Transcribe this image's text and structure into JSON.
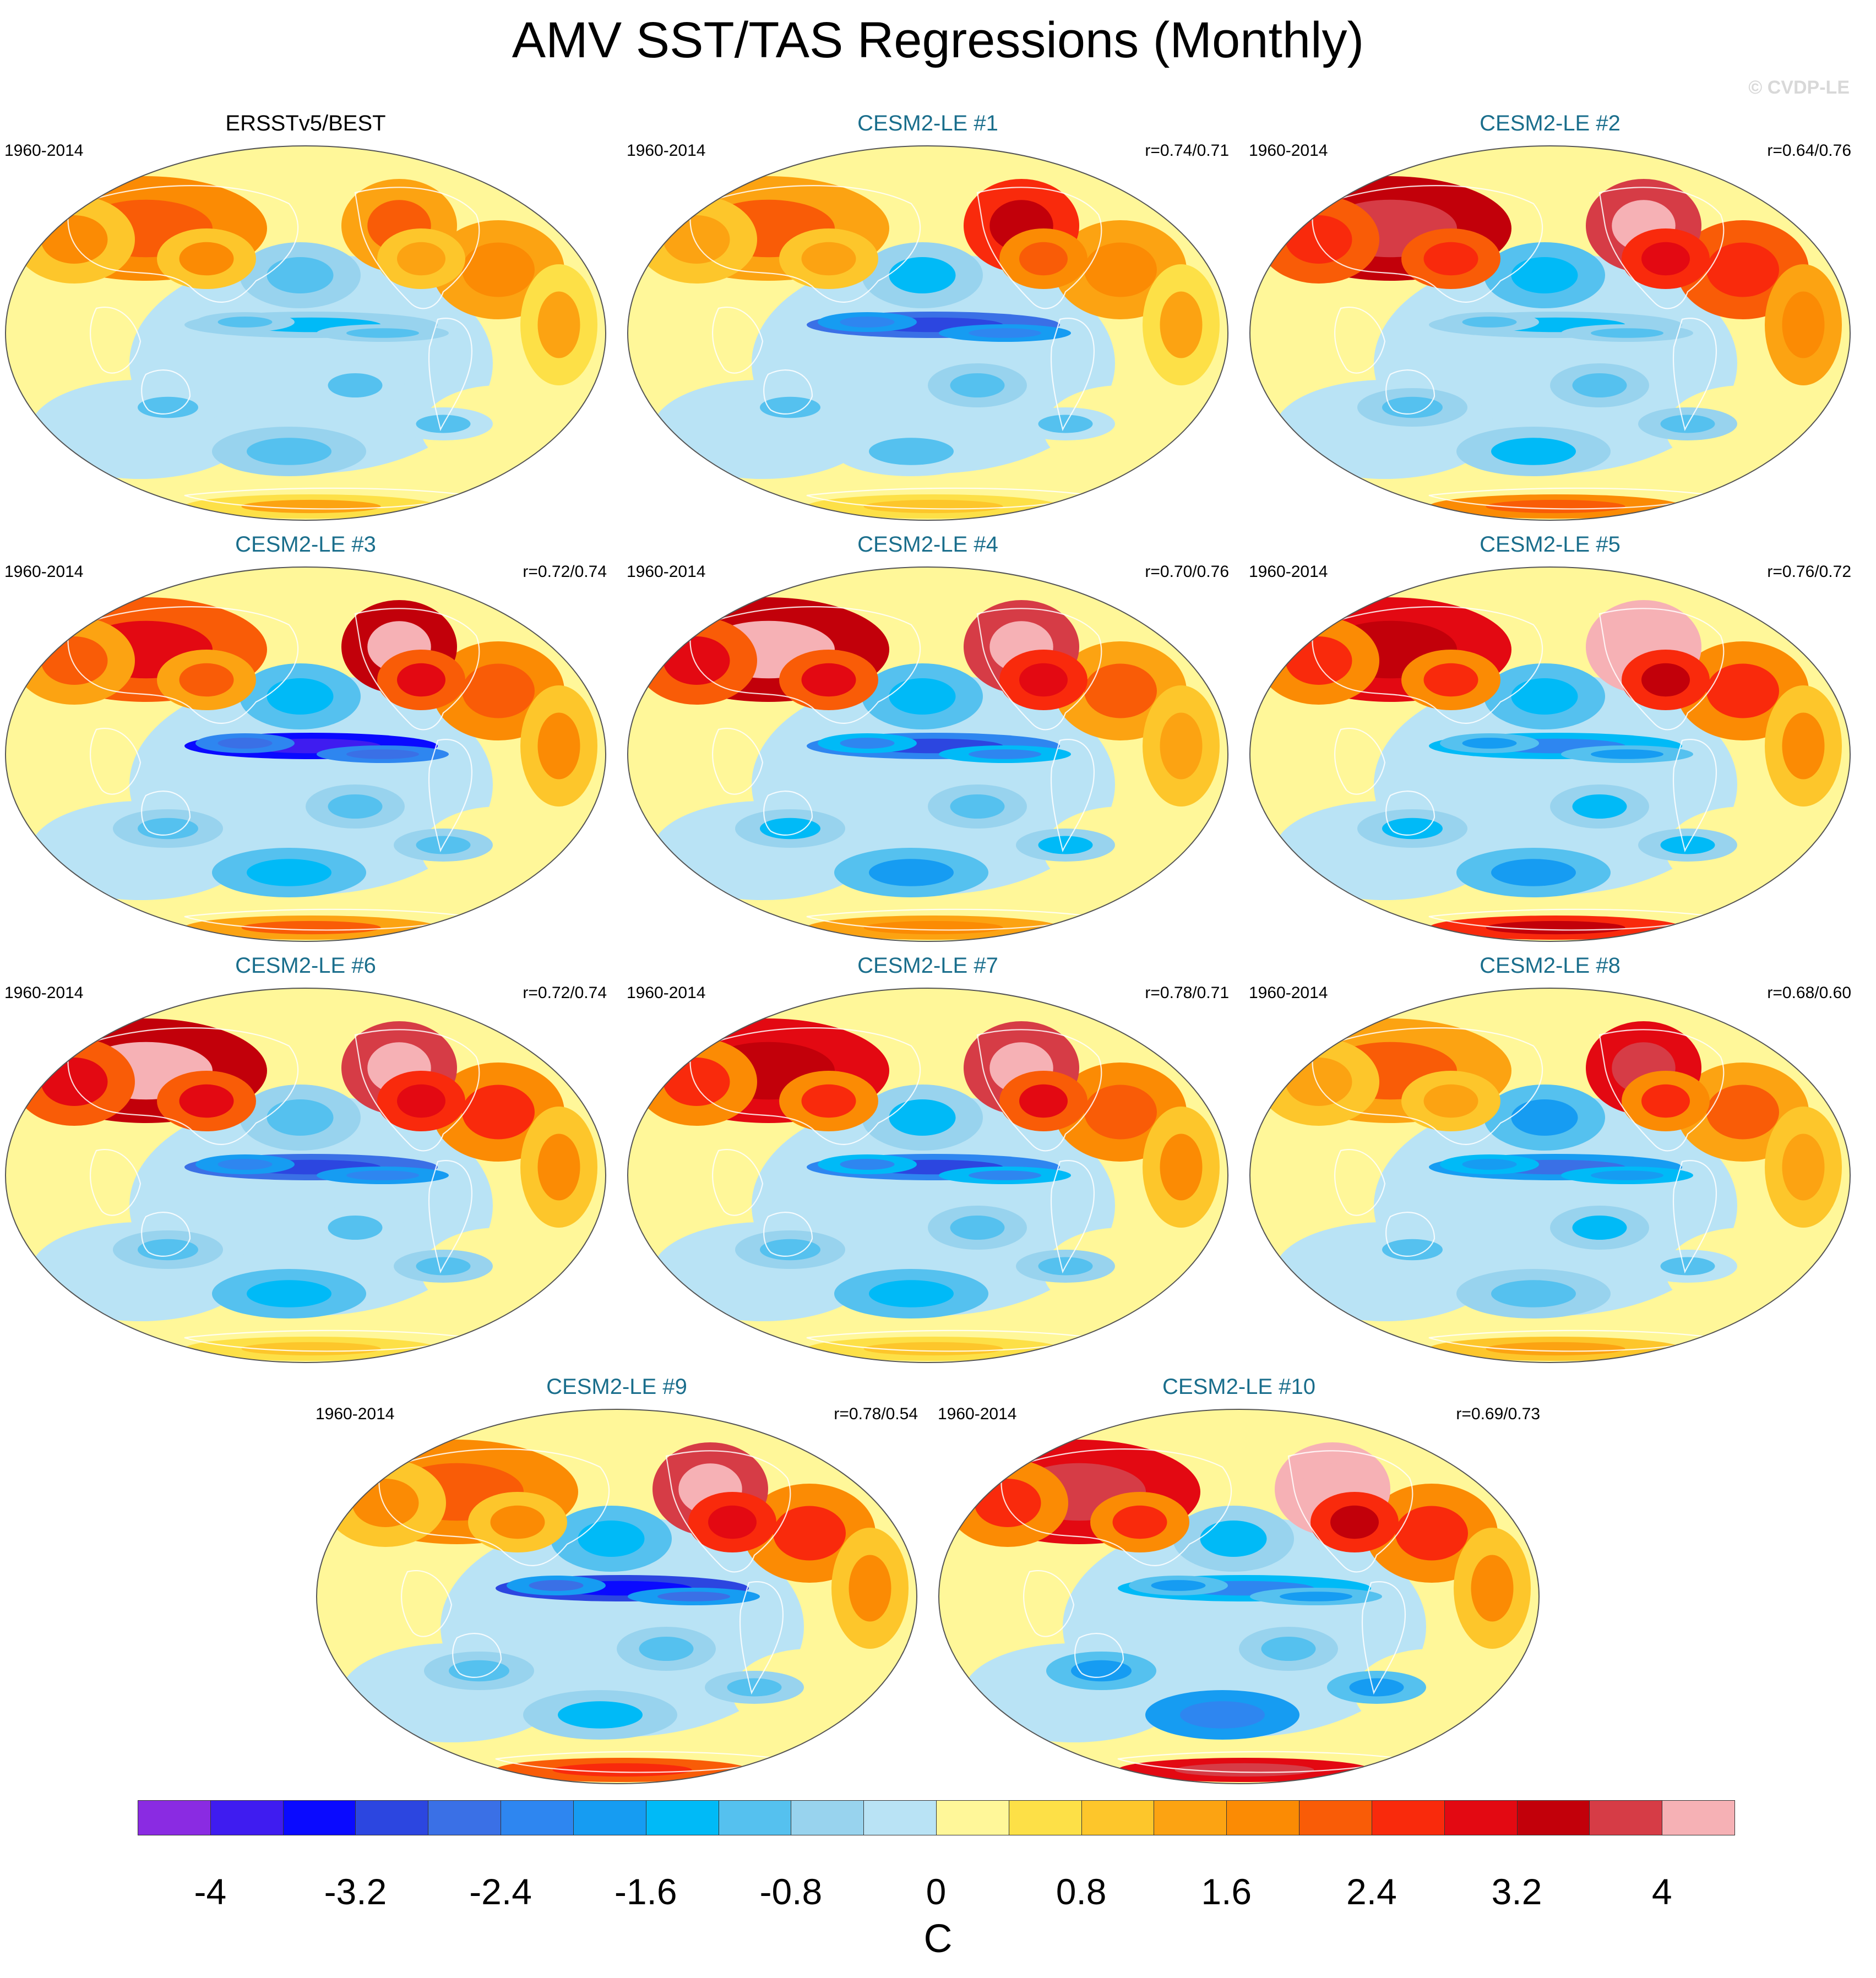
{
  "title": "AMV SST/TAS Regressions (Monthly)",
  "watermark": "© CVDP-LE",
  "panels": [
    {
      "title": "ERSSTv5/BEST",
      "years": "1960-2014",
      "r": "",
      "observed": true,
      "pattern": {
        "nam": 1.4,
        "eurasia": 1.7,
        "natl": 1.2,
        "enso": -0.8,
        "npac": -0.6,
        "southern": -0.5,
        "antarctica": 0.6
      }
    },
    {
      "title": "CESM2-LE #1",
      "years": "1960-2014",
      "r": "r=0.74/0.71",
      "pattern": {
        "nam": 2.6,
        "eurasia": 1.4,
        "natl": 1.2,
        "enso": -2.6,
        "npac": -0.7,
        "southern": -0.4,
        "antarctica": 0.4
      }
    },
    {
      "title": "CESM2-LE #2",
      "years": "1960-2014",
      "r": "r=0.64/0.76",
      "pattern": {
        "nam": 3.9,
        "eurasia": 3.2,
        "natl": 2.0,
        "enso": -0.8,
        "npac": -0.9,
        "southern": -0.8,
        "antarctica": 1.6
      }
    },
    {
      "title": "CESM2-LE #3",
      "years": "1960-2014",
      "r": "r=0.72/0.74",
      "pattern": {
        "nam": 3.4,
        "eurasia": 2.2,
        "natl": 1.6,
        "enso": -3.3,
        "npac": -0.9,
        "southern": -0.9,
        "antarctica": 1.4
      }
    },
    {
      "title": "CESM2-LE #4",
      "years": "1960-2014",
      "r": "r=0.70/0.76",
      "pattern": {
        "nam": 3.8,
        "eurasia": 3.4,
        "natl": 1.5,
        "enso": -2.4,
        "npac": -0.9,
        "southern": -1.1,
        "antarctica": 1.2
      }
    },
    {
      "title": "CESM2-LE #5",
      "years": "1960-2014",
      "r": "r=0.76/0.72",
      "pattern": {
        "nam": 4.0,
        "eurasia": 2.8,
        "natl": 1.8,
        "enso": -1.6,
        "npac": -1.0,
        "southern": -1.2,
        "antarctica": 2.6
      }
    },
    {
      "title": "CESM2-LE #6",
      "years": "1960-2014",
      "r": "r=0.72/0.74",
      "pattern": {
        "nam": 3.8,
        "eurasia": 3.5,
        "natl": 1.8,
        "enso": -2.5,
        "npac": -0.6,
        "southern": -0.9,
        "antarctica": 0.5
      }
    },
    {
      "title": "CESM2-LE #7",
      "years": "1960-2014",
      "r": "r=0.78/0.71",
      "pattern": {
        "nam": 3.6,
        "eurasia": 2.8,
        "natl": 1.7,
        "enso": -2.4,
        "npac": -0.8,
        "southern": -0.9,
        "antarctica": 0.4
      }
    },
    {
      "title": "CESM2-LE #8",
      "years": "1960-2014",
      "r": "r=0.68/0.60",
      "pattern": {
        "nam": 3.0,
        "eurasia": 1.5,
        "natl": 1.4,
        "enso": -2.0,
        "npac": -1.2,
        "southern": -0.6,
        "antarctica": 0.8
      }
    },
    {
      "title": "CESM2-LE #9",
      "years": "1960-2014",
      "r": "r=0.78/0.54",
      "pattern": {
        "nam": 3.9,
        "eurasia": 1.6,
        "natl": 1.8,
        "enso": -3.0,
        "npac": -0.9,
        "southern": -0.7,
        "antarctica": 2.0
      }
    },
    {
      "title": "CESM2-LE #10",
      "years": "1960-2014",
      "r": "r=0.69/0.73",
      "pattern": {
        "nam": 4.0,
        "eurasia": 3.0,
        "natl": 1.8,
        "enso": -1.6,
        "npac": -0.8,
        "southern": -1.8,
        "antarctica": 3.0
      }
    }
  ],
  "colorbar": {
    "units": "C",
    "levels": [
      -4.4,
      -4,
      -3.6,
      -3.2,
      -2.8,
      -2.4,
      -2,
      -1.6,
      -1.2,
      -0.8,
      -0.4,
      0,
      0.4,
      0.8,
      1.2,
      1.6,
      2,
      2.4,
      2.8,
      3.2,
      3.6,
      4,
      4.4
    ],
    "colors": [
      "#8a2be2",
      "#3f1cf0",
      "#0a0aff",
      "#2c46e0",
      "#3a70e6",
      "#2e86f0",
      "#169cf2",
      "#00baf7",
      "#55c1ef",
      "#98d3ee",
      "#b9e3f5",
      "#fff799",
      "#fde047",
      "#fdc62b",
      "#fca312",
      "#fb8b04",
      "#f95c07",
      "#f92a0c",
      "#e30912",
      "#c2000a",
      "#d63c46",
      "#f6b1b5"
    ],
    "tick_labels": [
      {
        "text": "-4",
        "value": -4.0
      },
      {
        "text": "-3.2",
        "value": -3.2
      },
      {
        "text": "-2.4",
        "value": -2.4
      },
      {
        "text": "-1.6",
        "value": -1.6
      },
      {
        "text": "-0.8",
        "value": -0.8
      },
      {
        "text": "0",
        "value": 0
      },
      {
        "text": "0.8",
        "value": 0.8
      },
      {
        "text": "1.6",
        "value": 1.6
      },
      {
        "text": "2.4",
        "value": 2.4
      },
      {
        "text": "3.2",
        "value": 3.2
      },
      {
        "text": "4",
        "value": 4.0
      }
    ]
  }
}
